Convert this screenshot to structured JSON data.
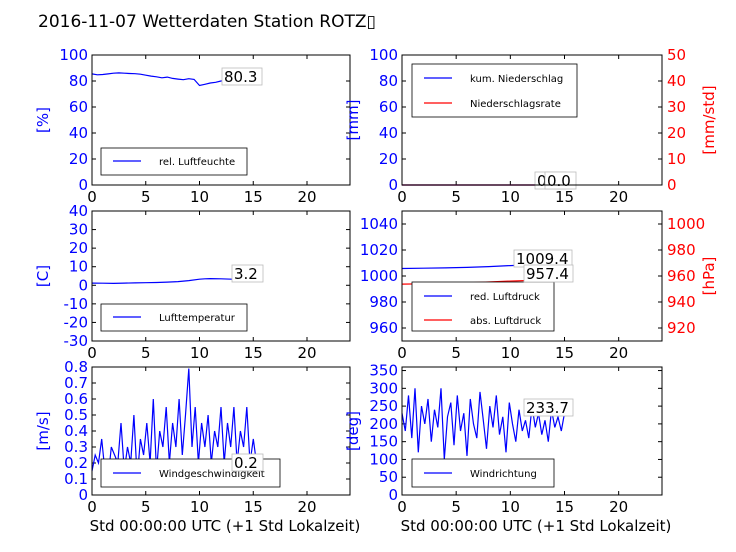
{
  "title": "2016-11-07 Wetterdaten Station ROTZ▯",
  "colors": {
    "primary": "#0000ff",
    "secondary": "#ff0000",
    "axis": "#000000"
  },
  "chart_data": [
    {
      "type": "line",
      "ylabel": "[%]",
      "xlim": [
        0,
        24
      ],
      "xticks": [
        0,
        5,
        10,
        15,
        20
      ],
      "ylim": [
        0,
        100
      ],
      "yticks": [
        0,
        20,
        40,
        60,
        80,
        100
      ],
      "legend": [
        "rel. Luftfeuchte"
      ],
      "legend_placement": "bottom-left",
      "annotations": [
        "80.3"
      ],
      "series": [
        {
          "name": "rel. Luftfeuchte",
          "x": [
            0,
            0.5,
            1,
            1.5,
            2,
            2.5,
            3,
            3.5,
            4,
            4.5,
            5,
            5.5,
            6,
            6.5,
            7,
            7.5,
            8,
            8.5,
            9,
            9.5,
            10,
            10.5,
            11,
            11.5,
            12,
            12.5,
            13,
            13.5,
            14,
            14.5,
            15,
            15.3
          ],
          "y": [
            85.5,
            84.8,
            85,
            85.5,
            86,
            86.2,
            86,
            85.8,
            85.6,
            85.2,
            84.5,
            83.8,
            83.2,
            82.5,
            83,
            82,
            81.5,
            81,
            81.8,
            81.2,
            76.5,
            77.5,
            78.5,
            79,
            80,
            80.5,
            81,
            81.5,
            82,
            81,
            80.3,
            80.3
          ]
        }
      ]
    },
    {
      "type": "line",
      "ylabel": "[mm]",
      "ylabel_right": "[mm/std]",
      "xlim": [
        0,
        24
      ],
      "xticks": [
        0,
        5,
        10,
        15,
        20
      ],
      "ylim": [
        0,
        100
      ],
      "yticks": [
        0,
        20,
        40,
        60,
        80,
        100
      ],
      "ylim_right": [
        0,
        50
      ],
      "yticks_right": [
        0,
        10,
        20,
        30,
        40,
        50
      ],
      "legend": [
        "kum. Niederschlag",
        "Niederschlagsrate"
      ],
      "legend_placement": "top-left",
      "annotations": [
        "0.0",
        "0.0"
      ],
      "series": [
        {
          "name": "kum. Niederschlag",
          "x": [
            0,
            15.3
          ],
          "y": [
            0,
            0
          ]
        },
        {
          "name": "Niederschlagsrate",
          "x": [
            0,
            15.3
          ],
          "y": [
            0,
            0
          ]
        }
      ]
    },
    {
      "type": "line",
      "ylabel": "[C]",
      "xlim": [
        0,
        24
      ],
      "xticks": [
        0,
        5,
        10,
        15,
        20
      ],
      "ylim": [
        -30,
        40
      ],
      "yticks": [
        -30,
        -20,
        -10,
        0,
        10,
        20,
        30,
        40
      ],
      "legend": [
        "Lufttemperatur"
      ],
      "legend_placement": "bottom-left",
      "annotations": [
        "3.2"
      ],
      "series": [
        {
          "name": "Lufttemperatur",
          "x": [
            0,
            1,
            2,
            3,
            4,
            5,
            6,
            7,
            8,
            9,
            10,
            10.5,
            11,
            12,
            13,
            14,
            15,
            15.3
          ],
          "y": [
            1.2,
            1.1,
            1.0,
            1.2,
            1.3,
            1.4,
            1.5,
            1.7,
            2.0,
            2.5,
            3.3,
            3.5,
            3.6,
            3.5,
            3.3,
            3.2,
            3.2,
            3.2
          ]
        }
      ]
    },
    {
      "type": "line",
      "ylabel_right": "[hPa]",
      "xlim": [
        0,
        24
      ],
      "xticks": [
        0,
        5,
        10,
        15,
        20
      ],
      "ylim": [
        950,
        1050
      ],
      "yticks": [
        960,
        980,
        1000,
        1020,
        1040
      ],
      "ylim_right": [
        910,
        1010
      ],
      "yticks_right": [
        920,
        940,
        960,
        980,
        1000
      ],
      "legend": [
        "red. Luftdruck",
        "abs. Luftdruck"
      ],
      "legend_placement": "bottom-left",
      "annotations": [
        "1009.4",
        "957.4"
      ],
      "series": [
        {
          "name": "red. Luftdruck",
          "x": [
            0,
            2,
            4,
            6,
            8,
            10,
            12,
            14,
            15.3
          ],
          "y": [
            1005.8,
            1006,
            1006.2,
            1006.6,
            1007.2,
            1008,
            1008.7,
            1009.2,
            1009.4
          ]
        },
        {
          "name": "abs. Luftdruck",
          "x": [
            0,
            2,
            4,
            6,
            8,
            10,
            12,
            14,
            15.3
          ],
          "y": [
            953.8,
            954,
            954.3,
            954.8,
            955.4,
            956.1,
            956.7,
            957.1,
            957.4
          ]
        }
      ]
    },
    {
      "type": "line",
      "ylabel": "[m/s]",
      "xlim": [
        0,
        24
      ],
      "xticks": [
        0,
        5,
        10,
        15,
        20
      ],
      "ylim": [
        0,
        0.8
      ],
      "yticks": [
        0,
        0.1,
        0.2,
        0.3,
        0.4,
        0.5,
        0.6,
        0.7,
        0.8
      ],
      "xlabel": "Std 00:00:00 UTC (+1 Std Lokalzeit)",
      "legend": [
        "Windgeschwindigkeit"
      ],
      "legend_placement": "bottom-center",
      "annotations": [
        "0.2"
      ],
      "series": [
        {
          "name": "Windgeschwindigkeit",
          "x": [
            0,
            0.3,
            0.6,
            0.9,
            1.2,
            1.5,
            1.8,
            2.1,
            2.4,
            2.7,
            3.0,
            3.3,
            3.6,
            3.9,
            4.2,
            4.5,
            4.8,
            5.1,
            5.4,
            5.7,
            6.0,
            6.3,
            6.6,
            6.9,
            7.2,
            7.5,
            7.8,
            8.1,
            8.4,
            8.7,
            9.0,
            9.3,
            9.6,
            9.9,
            10.2,
            10.5,
            10.8,
            11.1,
            11.4,
            11.7,
            12.0,
            12.3,
            12.6,
            12.9,
            13.2,
            13.5,
            13.8,
            14.1,
            14.4,
            14.7,
            15.0,
            15.3
          ],
          "y": [
            0.15,
            0.25,
            0.2,
            0.35,
            0.15,
            0.1,
            0.3,
            0.25,
            0.2,
            0.45,
            0.15,
            0.3,
            0.2,
            0.5,
            0.1,
            0.35,
            0.25,
            0.45,
            0.2,
            0.6,
            0.15,
            0.4,
            0.3,
            0.55,
            0.2,
            0.45,
            0.3,
            0.6,
            0.25,
            0.5,
            0.79,
            0.3,
            0.55,
            0.2,
            0.45,
            0.3,
            0.5,
            0.2,
            0.4,
            0.3,
            0.55,
            0.2,
            0.45,
            0.3,
            0.55,
            0.2,
            0.4,
            0.3,
            0.55,
            0.2,
            0.35,
            0.2
          ]
        }
      ]
    },
    {
      "type": "line",
      "ylabel": "[deg]",
      "xlim": [
        0,
        24
      ],
      "xticks": [
        0,
        5,
        10,
        15,
        20
      ],
      "ylim": [
        0,
        360
      ],
      "yticks": [
        0,
        50,
        100,
        150,
        200,
        250,
        300,
        350
      ],
      "xlabel": "Std 00:00:00 UTC (+1 Std Lokalzeit)",
      "legend": [
        "Windrichtung"
      ],
      "legend_placement": "bottom-left",
      "annotations": [
        "233.7"
      ],
      "series": [
        {
          "name": "Windrichtung",
          "x": [
            0,
            0.3,
            0.6,
            0.9,
            1.2,
            1.5,
            1.8,
            2.1,
            2.4,
            2.7,
            3.0,
            3.3,
            3.6,
            3.9,
            4.2,
            4.5,
            4.8,
            5.1,
            5.4,
            5.7,
            6.0,
            6.3,
            6.6,
            6.9,
            7.2,
            7.5,
            7.8,
            8.1,
            8.4,
            8.7,
            9.0,
            9.3,
            9.6,
            9.9,
            10.2,
            10.5,
            10.8,
            11.1,
            11.4,
            11.7,
            12.0,
            12.3,
            12.6,
            12.9,
            13.2,
            13.5,
            13.8,
            14.1,
            14.4,
            14.7,
            15.0,
            15.3
          ],
          "y": [
            230,
            180,
            280,
            160,
            300,
            120,
            250,
            200,
            270,
            150,
            240,
            190,
            300,
            100,
            220,
            260,
            140,
            280,
            180,
            230,
            110,
            270,
            200,
            160,
            290,
            210,
            130,
            250,
            190,
            280,
            170,
            220,
            120,
            260,
            200,
            150,
            240,
            180,
            210,
            160,
            250,
            190,
            230,
            170,
            210,
            150,
            240,
            190,
            220,
            180,
            230,
            233.7
          ]
        }
      ]
    }
  ]
}
